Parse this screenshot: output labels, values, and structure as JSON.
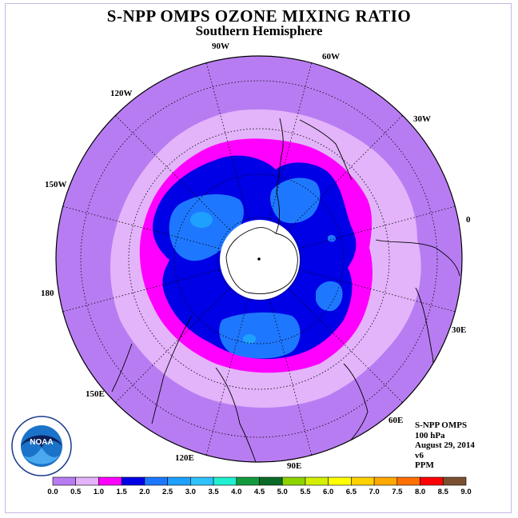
{
  "header": {
    "title": "S-NPP OMPS OZONE MIXING RATIO",
    "subtitle": "Southern Hemisphere"
  },
  "map": {
    "projection": "south-polar-stereographic",
    "longitude_labels": [
      "90W",
      "60W",
      "30W",
      "0",
      "30E",
      "60E",
      "90E",
      "120E",
      "150E",
      "180",
      "150W",
      "120W"
    ],
    "legend_levels": [
      "0.0-0.5",
      "0.5-1.0",
      "1.0-1.5",
      "1.5-2.0",
      "2.0-2.5",
      "2.5-3.0"
    ]
  },
  "info": {
    "instrument": "S-NPP OMPS",
    "level": "100 hPa",
    "date": "August 29, 2014",
    "version": "v6",
    "units": "PPM"
  },
  "logo": {
    "icon": "noaa-logo-icon",
    "text": "NOAA"
  },
  "colorbar": {
    "labels": [
      "0.0",
      "0.5",
      "1.0",
      "1.5",
      "2.0",
      "2.5",
      "3.0",
      "3.5",
      "4.0",
      "4.5",
      "5.0",
      "5.5",
      "6.0",
      "6.5",
      "7.0",
      "7.5",
      "8.0",
      "8.5",
      "9.0"
    ],
    "colors": [
      "#b87cf2",
      "#e3b4fa",
      "#ff00ff",
      "#0000e6",
      "#1e78ff",
      "#1ea0ff",
      "#30c2ff",
      "#20f0d0",
      "#129a3c",
      "#0a6a28",
      "#8cd400",
      "#d4f000",
      "#ffff00",
      "#ffd200",
      "#ffa800",
      "#ff7000",
      "#ff0000",
      "#7a5030"
    ]
  },
  "colors": {
    "c00": "#b87cf2",
    "c05": "#e3b4fa",
    "c10": "#ff00ff",
    "c15": "#0000e6",
    "c20": "#1e78ff",
    "c25": "#1ea0ff"
  }
}
